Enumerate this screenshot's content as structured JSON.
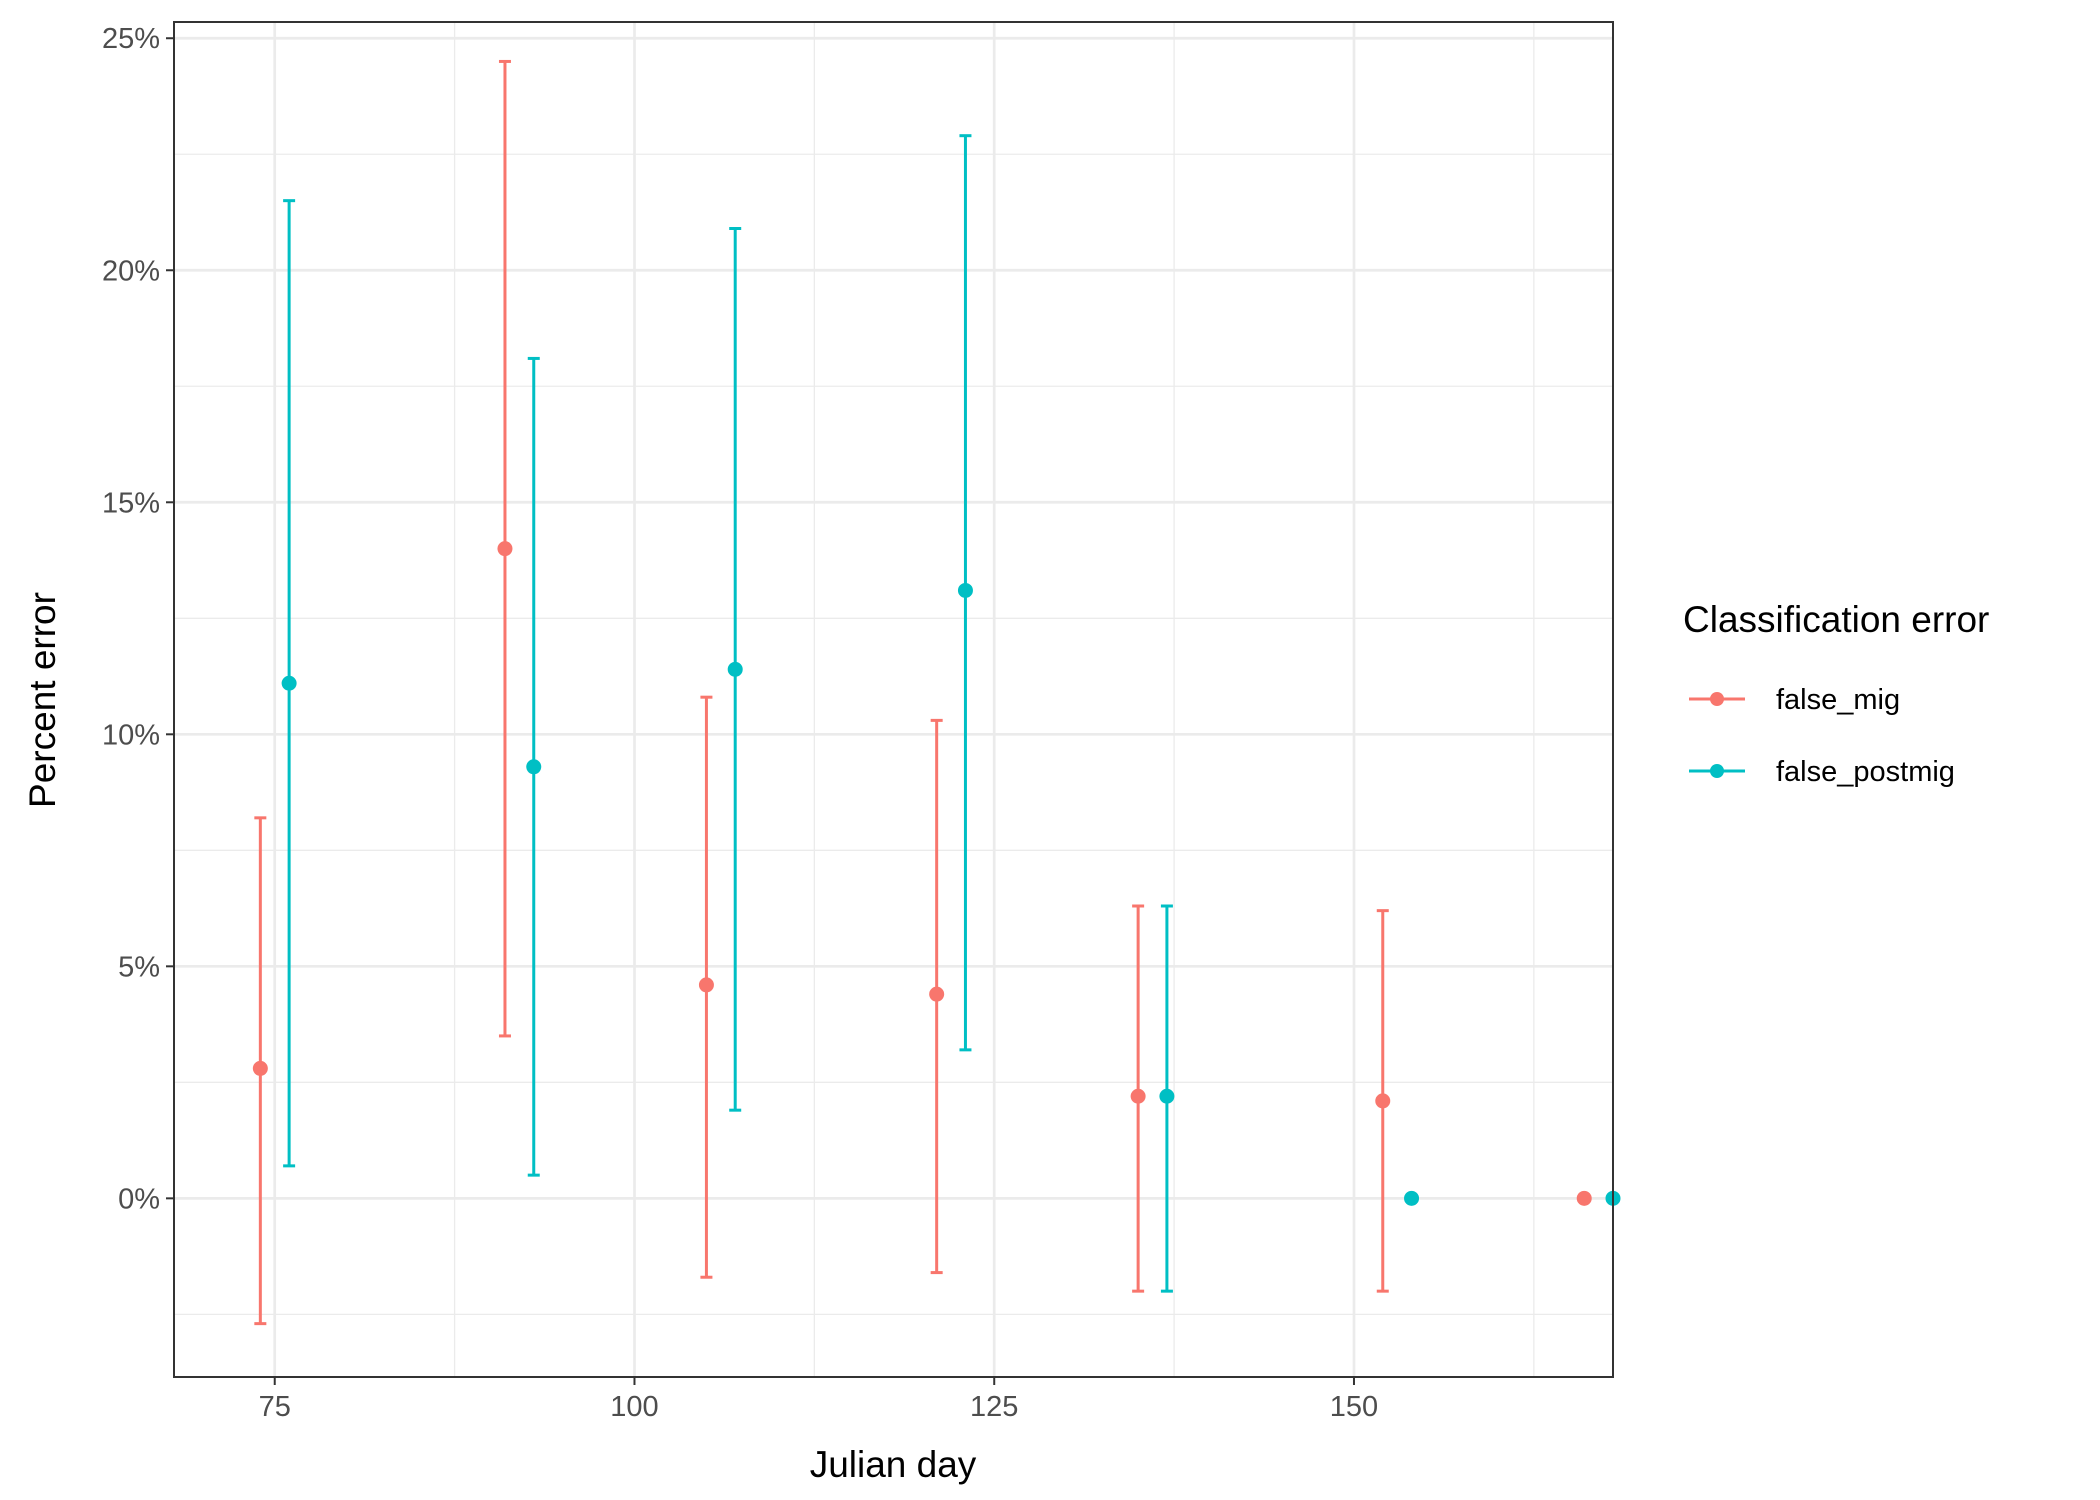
{
  "chart_data": {
    "type": "scatter",
    "title": "",
    "xlabel": "Julian day",
    "ylabel": "Percent error",
    "xlim": [
      68,
      168
    ],
    "ylim": [
      -0.0385,
      0.2535
    ],
    "x_ticks": [
      75,
      100,
      125,
      150
    ],
    "x_tick_labels": [
      "75",
      "100",
      "125",
      "150"
    ],
    "y_ticks": [
      0,
      0.05,
      0.1,
      0.15,
      0.2,
      0.25
    ],
    "y_tick_labels": [
      "0%",
      "5%",
      "10%",
      "15%",
      "20%",
      "25%"
    ],
    "grid": true,
    "legend": {
      "title": "Classification error",
      "position": "right"
    },
    "series": [
      {
        "name": "false_mig",
        "color": "#F8766D",
        "points": [
          {
            "x": 74,
            "y": 0.028,
            "ymin": -0.027,
            "ymax": 0.082
          },
          {
            "x": 91,
            "y": 0.14,
            "ymin": 0.035,
            "ymax": 0.245
          },
          {
            "x": 105,
            "y": 0.046,
            "ymin": -0.017,
            "ymax": 0.108
          },
          {
            "x": 121,
            "y": 0.044,
            "ymin": -0.016,
            "ymax": 0.103
          },
          {
            "x": 135,
            "y": 0.022,
            "ymin": -0.02,
            "ymax": 0.063
          },
          {
            "x": 152,
            "y": 0.021,
            "ymin": -0.02,
            "ymax": 0.062
          },
          {
            "x": 166,
            "y": 0.0,
            "ymin": null,
            "ymax": null
          }
        ]
      },
      {
        "name": "false_postmig",
        "color": "#00BFC4",
        "points": [
          {
            "x": 76,
            "y": 0.111,
            "ymin": 0.007,
            "ymax": 0.215
          },
          {
            "x": 93,
            "y": 0.093,
            "ymin": 0.005,
            "ymax": 0.181
          },
          {
            "x": 107,
            "y": 0.114,
            "ymin": 0.019,
            "ymax": 0.209
          },
          {
            "x": 123,
            "y": 0.131,
            "ymin": 0.032,
            "ymax": 0.229
          },
          {
            "x": 137,
            "y": 0.022,
            "ymin": -0.02,
            "ymax": 0.063
          },
          {
            "x": 154,
            "y": 0.0,
            "ymin": null,
            "ymax": null
          },
          {
            "x": 168,
            "y": 0.0,
            "ymin": null,
            "ymax": null
          }
        ]
      }
    ]
  }
}
